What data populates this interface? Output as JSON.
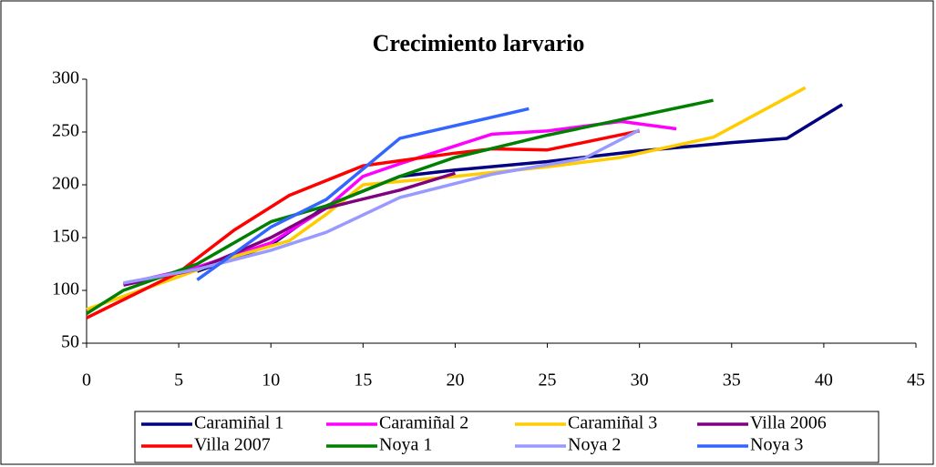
{
  "chart_data": {
    "type": "line",
    "title": "Crecimiento larvario",
    "xlim": [
      0,
      45
    ],
    "xticks": [
      0,
      5,
      10,
      15,
      20,
      25,
      30,
      35,
      40,
      45
    ],
    "ylim": [
      50,
      300
    ],
    "yticks": [
      50,
      100,
      150,
      200,
      250,
      300
    ],
    "grid": false,
    "legend": "bottom",
    "series": [
      {
        "name": "Caramiñal 1",
        "color": "#000080",
        "x": [
          6,
          10,
          13,
          17,
          20,
          25,
          30,
          35,
          38,
          41
        ],
        "values": [
          118,
          143,
          180,
          208,
          214,
          222,
          232,
          240,
          244,
          276
        ]
      },
      {
        "name": "Caramiñal 2",
        "color": "#ff00ff",
        "x": [
          2,
          6,
          10,
          13,
          15,
          17,
          22,
          25,
          29,
          32
        ],
        "values": [
          106,
          122,
          145,
          178,
          208,
          220,
          248,
          251,
          260,
          253
        ]
      },
      {
        "name": "Caramiñal 3",
        "color": "#ffcc00",
        "x": [
          0,
          5,
          8,
          11,
          13,
          15,
          20,
          25,
          29,
          34,
          39
        ],
        "values": [
          82,
          113,
          132,
          147,
          172,
          200,
          208,
          217,
          226,
          245,
          292
        ]
      },
      {
        "name": "Villa 2006",
        "color": "#800080",
        "x": [
          2,
          6,
          10,
          13,
          17,
          20
        ],
        "values": [
          105,
          120,
          150,
          178,
          195,
          211
        ]
      },
      {
        "name": "Villa 2007",
        "color": "#ff0000",
        "x": [
          0,
          5,
          8,
          11,
          15,
          20,
          22,
          25,
          30
        ],
        "values": [
          74,
          117,
          157,
          190,
          218,
          230,
          234,
          233,
          251
        ]
      },
      {
        "name": "Noya 1",
        "color": "#008000",
        "x": [
          0,
          2,
          6,
          10,
          13,
          17,
          20,
          25,
          34
        ],
        "values": [
          78,
          100,
          125,
          165,
          180,
          208,
          226,
          247,
          280
        ]
      },
      {
        "name": "Noya 2",
        "color": "#9999ff",
        "x": [
          2,
          6,
          10,
          13,
          17,
          22,
          27,
          30
        ],
        "values": [
          107,
          120,
          138,
          155,
          188,
          210,
          225,
          252
        ]
      },
      {
        "name": "Noya 3",
        "color": "#3366ff",
        "x": [
          6,
          10,
          13,
          15,
          17,
          24
        ],
        "values": [
          110,
          160,
          186,
          215,
          244,
          272
        ]
      }
    ]
  }
}
